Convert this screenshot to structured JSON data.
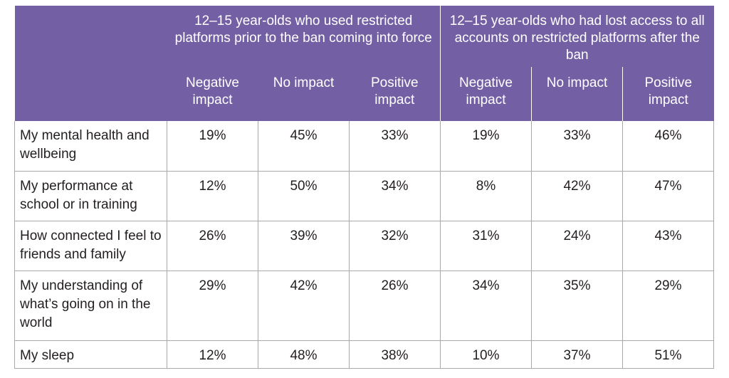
{
  "table": {
    "group_headers": [
      "12–15 year-olds who used restricted platforms prior to the ban coming into force",
      "12–15 year-olds who had lost access to all accounts on restricted platforms after the ban"
    ],
    "sub_headers": [
      "Negative impact",
      "No impact",
      "Positive impact",
      "Negative impact",
      "No impact",
      "Positive impact"
    ],
    "rows": [
      {
        "label": "My mental health and wellbeing",
        "values": [
          "19%",
          "45%",
          "33%",
          "19%",
          "33%",
          "46%"
        ]
      },
      {
        "label": "My performance at school or in training",
        "values": [
          "12%",
          "50%",
          "34%",
          "8%",
          "42%",
          "47%"
        ]
      },
      {
        "label": "How connected I feel to friends and family",
        "values": [
          "26%",
          "39%",
          "32%",
          "31%",
          "24%",
          "43%"
        ]
      },
      {
        "label": "My understanding of what’s going on in the world",
        "values": [
          "29%",
          "42%",
          "26%",
          "34%",
          "35%",
          "29%"
        ]
      },
      {
        "label": "My sleep",
        "values": [
          "12%",
          "48%",
          "38%",
          "10%",
          "37%",
          "51%"
        ]
      }
    ]
  },
  "colors": {
    "header_bg": "#7360a4",
    "header_text": "#ffffff",
    "grid": "#a9a9a9",
    "body_text": "#231f20"
  }
}
